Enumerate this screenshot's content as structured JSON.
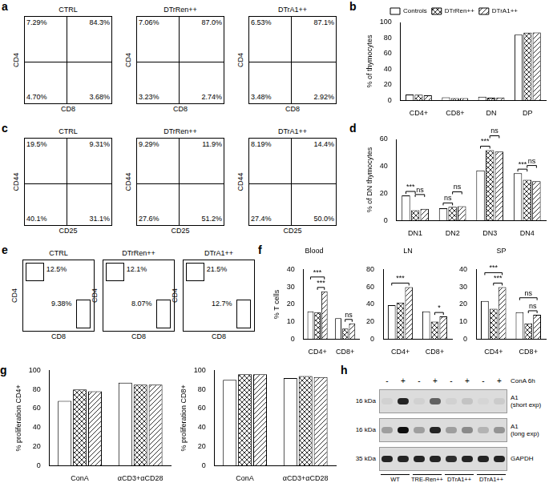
{
  "flow": [
    {
      "panel": "a",
      "x_label": "CD8",
      "y_label": "CD4",
      "plots": [
        {
          "title": "CTRL",
          "quadrants": [
            "7.29%",
            "84.3%",
            "4.70%",
            "3.68%"
          ]
        },
        {
          "title": "DTrRen++",
          "quadrants": [
            "7.06%",
            "87.0%",
            "3.23%",
            "2.74%"
          ]
        },
        {
          "title": "DTrA1++",
          "quadrants": [
            "6.53%",
            "87.1%",
            "3.48%",
            "2.92%"
          ]
        }
      ]
    },
    {
      "panel": "c",
      "x_label": "CD25",
      "y_label": "CD44",
      "plots": [
        {
          "title": "CTRL",
          "quadrants": [
            "19.5%",
            "9.31%",
            "40.1%",
            "31.1%"
          ]
        },
        {
          "title": "DTrRen++",
          "quadrants": [
            "9.29%",
            "11.9%",
            "27.6%",
            "51.2%"
          ]
        },
        {
          "title": "DTrA1++",
          "quadrants": [
            "8.19%",
            "14.4%",
            "27.4%",
            "50.0%"
          ]
        }
      ]
    },
    {
      "panel": "e",
      "x_label": "CD8",
      "y_label": "CD4",
      "plots": [
        {
          "title": "CTRL",
          "gates": [
            "12.5%",
            "9.38%"
          ]
        },
        {
          "title": "DTrRen++",
          "gates": [
            "12.1%",
            "8.07%"
          ]
        },
        {
          "title": "DTrA1++",
          "gates": [
            "21.5%",
            "12.7%"
          ]
        }
      ]
    }
  ],
  "chart_data": [
    {
      "panel": "b",
      "type": "bar",
      "categories": [
        "CD4+",
        "CD8+",
        "DN",
        "DP"
      ],
      "series": [
        {
          "name": "Controls",
          "color": "#ffffff",
          "values": [
            7.3,
            3.7,
            4.7,
            84.3
          ]
        },
        {
          "name": "DTrRen++",
          "color": "#333333",
          "values": [
            7.1,
            2.7,
            3.2,
            87.0
          ]
        },
        {
          "name": "DTrA1++",
          "color": "#333333",
          "values": [
            6.5,
            2.9,
            3.5,
            87.1
          ]
        }
      ],
      "y_label": "% of thymocytes",
      "ylim": [
        0,
        100
      ],
      "yticks": [
        0,
        20,
        40,
        60,
        80,
        100
      ],
      "grid": false,
      "legend": "top"
    },
    {
      "panel": "d",
      "type": "bar",
      "categories": [
        "DN1",
        "DN2",
        "DN3",
        "DN4"
      ],
      "series": [
        {
          "name": "Controls",
          "color": "#ffffff",
          "values": [
            18.5,
            9,
            37,
            35
          ]
        },
        {
          "name": "DTrRen++",
          "color": "#333333",
          "values": [
            7.5,
            10,
            52,
            30
          ]
        },
        {
          "name": "DTrA1++",
          "color": "#333333",
          "values": [
            8.5,
            10.5,
            51,
            29
          ]
        }
      ],
      "y_label": "% of DN thymocytes",
      "ylim": [
        0,
        60
      ],
      "yticks": [
        0,
        20,
        40,
        60
      ],
      "grid": false,
      "annotations": [
        {
          "category": "DN1",
          "between": [
            "Controls",
            "DTrRen++"
          ],
          "label": "***"
        },
        {
          "category": "DN1",
          "between": [
            "DTrRen++",
            "DTrA1++"
          ],
          "label": "ns"
        },
        {
          "category": "DN2",
          "between": [
            "Controls",
            "DTrRen++"
          ],
          "label": "ns"
        },
        {
          "category": "DN2",
          "between": [
            "DTrRen++",
            "DTrA1++"
          ],
          "label": "ns"
        },
        {
          "category": "DN3",
          "between": [
            "Controls",
            "DTrRen++"
          ],
          "label": "***"
        },
        {
          "category": "DN3",
          "between": [
            "DTrRen++",
            "DTrA1++"
          ],
          "label": "ns"
        },
        {
          "category": "DN4",
          "between": [
            "Controls",
            "DTrRen++"
          ],
          "label": "***"
        },
        {
          "category": "DN4",
          "between": [
            "DTrRen++",
            "DTrA1++"
          ],
          "label": "ns"
        }
      ]
    },
    {
      "panel": "f",
      "type": "bar",
      "title": "Blood",
      "categories": [
        "CD4+",
        "CD8+"
      ],
      "series": [
        {
          "name": "Controls",
          "color": "#ffffff",
          "values": [
            16,
            12
          ]
        },
        {
          "name": "DTrRen++",
          "color": "#333333",
          "values": [
            15.5,
            6
          ]
        },
        {
          "name": "DTrA1++",
          "color": "#333333",
          "values": [
            27.5,
            9
          ]
        }
      ],
      "y_label": "% T cells",
      "ylim": [
        0,
        40
      ],
      "yticks": [
        0,
        10,
        20,
        30,
        40
      ],
      "grid": false,
      "annotations": [
        {
          "category": "CD4+",
          "between": [
            "DTrRen++",
            "DTrA1++"
          ],
          "label": "***"
        },
        {
          "category": "CD4+",
          "between": [
            "Controls",
            "DTrA1++"
          ],
          "label": "***"
        },
        {
          "category": "CD8+",
          "between": [
            "DTrRen++",
            "DTrA1++"
          ],
          "label": "ns"
        }
      ]
    },
    {
      "type": "bar",
      "title": "LN",
      "categories": [
        "CD4+",
        "CD8+"
      ],
      "series": [
        {
          "name": "Controls",
          "color": "#ffffff",
          "values": [
            39,
            32
          ]
        },
        {
          "name": "DTrRen++",
          "color": "#333333",
          "values": [
            42,
            20
          ]
        },
        {
          "name": "DTrA1++",
          "color": "#333333",
          "values": [
            60,
            26
          ]
        }
      ],
      "ylim": [
        0,
        80
      ],
      "yticks": [
        0,
        20,
        40,
        60,
        80
      ],
      "grid": false,
      "annotations": [
        {
          "category": "CD4+",
          "between": [
            "Controls",
            "DTrA1++"
          ],
          "label": "***"
        },
        {
          "category": "CD8+",
          "between": [
            "DTrRen++",
            "DTrA1++"
          ],
          "label": "*"
        }
      ]
    },
    {
      "type": "bar",
      "title": "SP",
      "categories": [
        "CD4+",
        "CD8+"
      ],
      "series": [
        {
          "name": "Controls",
          "color": "#ffffff",
          "values": [
            22,
            15.5
          ]
        },
        {
          "name": "DTrRen++",
          "color": "#333333",
          "values": [
            17.5,
            9
          ]
        },
        {
          "name": "DTrA1++",
          "color": "#333333",
          "values": [
            30,
            14
          ]
        }
      ],
      "ylim": [
        0,
        40
      ],
      "yticks": [
        0,
        10,
        20,
        30,
        40
      ],
      "grid": false,
      "annotations": [
        {
          "category": "CD4+",
          "between": [
            "DTrRen++",
            "DTrA1++"
          ],
          "label": "***"
        },
        {
          "category": "CD4+",
          "between": [
            "Controls",
            "DTrA1++"
          ],
          "label": "***"
        },
        {
          "category": "CD8+",
          "between": [
            "DTrRen++",
            "DTrA1++"
          ],
          "label": "ns"
        },
        {
          "category": "CD8+",
          "between": [
            "Controls",
            "DTrA1++"
          ],
          "label": "ns"
        }
      ]
    },
    {
      "panel": "g",
      "type": "bar",
      "categories": [
        "ConA",
        "αCD3+αCD28"
      ],
      "series": [
        {
          "name": "Controls",
          "color": "#ffffff",
          "values": [
            68,
            87
          ]
        },
        {
          "name": "DTrRen++",
          "color": "#333333",
          "values": [
            80,
            85
          ]
        },
        {
          "name": "DTrA1++",
          "color": "#333333",
          "values": [
            78,
            85
          ]
        }
      ],
      "y_label": "% proliferation CD4+",
      "ylim": [
        0,
        100
      ],
      "yticks": [
        0,
        20,
        40,
        60,
        80,
        100
      ],
      "grid": false
    },
    {
      "type": "bar",
      "categories": [
        "ConA",
        "αCD3+αCD28"
      ],
      "series": [
        {
          "name": "Controls",
          "color": "#ffffff",
          "values": [
            90,
            92
          ]
        },
        {
          "name": "DTrRen++",
          "color": "#333333",
          "values": [
            96,
            94
          ]
        },
        {
          "name": "DTrA1++",
          "color": "#333333",
          "values": [
            96,
            93
          ]
        }
      ],
      "y_label": "% proliferation CD8+",
      "ylim": [
        0,
        100
      ],
      "yticks": [
        0,
        20,
        40,
        60,
        80,
        100
      ],
      "grid": false
    }
  ],
  "blot": {
    "panel": "h",
    "treatment": "ConA 6h",
    "lanes": [
      "-",
      "+",
      "-",
      "+",
      "-",
      "+",
      "-",
      "+"
    ],
    "groups": [
      "WT",
      "TRE-Ren++",
      "DTrA1++",
      "DTrA1++"
    ],
    "rows": [
      {
        "label": "A1\n(short exp)",
        "marker": "16 kDa",
        "intensity": [
          0.05,
          0.9,
          0.05,
          0.6,
          0.05,
          0.12,
          0.03,
          0.08
        ]
      },
      {
        "label": "A1\n(long exp)",
        "marker": "16 kDa",
        "intensity": [
          0.3,
          1,
          0.3,
          0.9,
          0.3,
          0.4,
          0.2,
          0.35
        ]
      },
      {
        "label": "GAPDH",
        "marker": "35 kDa",
        "intensity": [
          0.9,
          0.9,
          0.9,
          0.9,
          0.85,
          0.9,
          0.9,
          0.9
        ]
      }
    ]
  }
}
